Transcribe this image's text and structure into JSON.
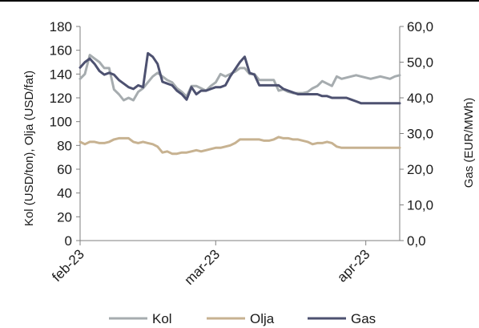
{
  "chart_data": {
    "type": "line",
    "x_ticks": [
      "feb-23",
      "mar-23",
      "apr-23"
    ],
    "left_axis": {
      "label": "Kol (USD/ton), Olja (USD/fat)",
      "range": [
        0,
        180
      ],
      "ticks": [
        "0",
        "20",
        "40",
        "60",
        "80",
        "100",
        "120",
        "140",
        "160",
        "180"
      ]
    },
    "right_axis": {
      "label": "Gas (EUR/MWh)",
      "range": [
        0,
        60
      ],
      "ticks": [
        "0,0",
        "10,0",
        "20,0",
        "30,0",
        "40,0",
        "50,0",
        "60,0"
      ]
    },
    "series": [
      {
        "name": "Kol",
        "axis": "left",
        "color": "#a6acaf",
        "x": [
          0,
          1,
          2,
          3,
          4,
          5,
          6,
          7,
          8,
          9,
          10,
          11,
          12,
          13,
          14,
          15,
          16,
          17,
          18,
          19,
          20,
          21,
          22,
          23,
          24,
          25,
          26,
          27,
          28,
          29,
          30,
          31,
          32,
          33,
          34,
          35,
          36,
          37,
          38,
          39,
          40,
          41,
          42,
          43,
          44,
          45,
          46,
          47,
          48,
          49,
          50,
          51,
          52,
          53,
          54,
          55,
          56,
          57,
          58,
          59,
          60,
          61,
          62,
          63,
          64,
          65,
          66
        ],
        "values": [
          136,
          140,
          156,
          153,
          150,
          145,
          145,
          127,
          123,
          118,
          120,
          118,
          125,
          128,
          133,
          138,
          141,
          138,
          135,
          133,
          128,
          125,
          121,
          130,
          130,
          128,
          126,
          130,
          133,
          140,
          138,
          140,
          142,
          145,
          145,
          140,
          140,
          135,
          135,
          135,
          135,
          126,
          127,
          125,
          124,
          124,
          124,
          125,
          128,
          130,
          134,
          132,
          130,
          138,
          136,
          137,
          138,
          139,
          138,
          137,
          136,
          137,
          138,
          137,
          136,
          138,
          139
        ]
      },
      {
        "name": "Olja",
        "axis": "left",
        "color": "#c7b291",
        "x": [
          0,
          1,
          2,
          3,
          4,
          5,
          6,
          7,
          8,
          9,
          10,
          11,
          12,
          13,
          14,
          15,
          16,
          17,
          18,
          19,
          20,
          21,
          22,
          23,
          24,
          25,
          26,
          27,
          28,
          29,
          30,
          31,
          32,
          33,
          34,
          35,
          36,
          37,
          38,
          39,
          40,
          41,
          42,
          43,
          44,
          45,
          46,
          47,
          48,
          49,
          50,
          51,
          52,
          53,
          54,
          55,
          56,
          57,
          58,
          59,
          60,
          61,
          62,
          63,
          64,
          65,
          66
        ],
        "values": [
          83,
          81,
          83,
          83,
          82,
          82,
          83,
          85,
          86,
          86,
          86,
          83,
          82,
          83,
          82,
          81,
          79,
          74,
          75,
          73,
          73,
          74,
          74,
          75,
          76,
          75,
          76,
          77,
          78,
          78,
          79,
          80,
          82,
          85,
          85,
          85,
          85,
          85,
          84,
          84,
          85,
          87,
          86,
          86,
          85,
          85,
          84,
          83,
          81,
          82,
          82,
          83,
          82,
          79,
          78,
          78,
          78,
          78,
          78,
          78,
          78,
          78,
          78,
          78,
          78,
          78,
          78
        ]
      },
      {
        "name": "Gas",
        "axis": "right",
        "color": "#4d5170",
        "x": [
          0,
          1,
          2,
          3,
          4,
          5,
          6,
          7,
          8,
          9,
          10,
          11,
          12,
          13,
          14,
          15,
          16,
          17,
          18,
          19,
          20,
          21,
          22,
          23,
          24,
          25,
          26,
          27,
          28,
          29,
          30,
          31,
          32,
          33,
          34,
          35,
          36,
          37,
          38,
          39,
          40,
          41,
          42,
          43,
          44,
          45,
          46,
          47,
          48,
          49,
          50,
          51,
          52,
          53,
          54,
          55,
          56,
          57,
          58,
          59,
          60,
          61,
          62,
          63,
          64,
          65,
          66
        ],
        "values": [
          48.5,
          50,
          51,
          49.5,
          47.5,
          46.5,
          47,
          46.5,
          45,
          44,
          43,
          42.5,
          43.5,
          43,
          52.5,
          51.5,
          49.5,
          44.5,
          44,
          43.5,
          42,
          41,
          39.5,
          43,
          41,
          42,
          42,
          42.5,
          43,
          43,
          43.5,
          46,
          48,
          50,
          51.5,
          47,
          46.5,
          43.5,
          43.5,
          43.5,
          43.5,
          43.5,
          42.5,
          42,
          41.5,
          41,
          41,
          41,
          41,
          41,
          40.5,
          40.5,
          40,
          40,
          40,
          40,
          39.5,
          39,
          38.5,
          38.5,
          38.5,
          38.5,
          38.5,
          38.5,
          38.5,
          38.5,
          38.5
        ]
      }
    ],
    "legend": {
      "position": "bottom"
    },
    "grid": false
  }
}
